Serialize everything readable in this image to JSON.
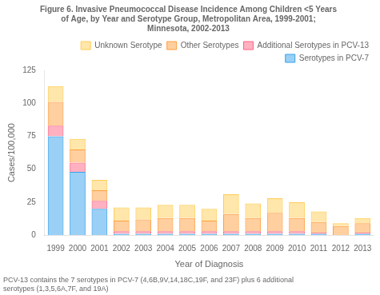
{
  "chart_data": {
    "type": "bar",
    "title": "Figure 6. Invasive Pneumococcal Disease Incidence Among Children <5 Years\nof Age, by Year and Serotype Group, Metropolitan Area, 1999-2001;\nMinnesota, 2002-2013",
    "xlabel": "Year of Diagnosis",
    "ylabel": "Cases/100,000",
    "footnote": "PCV-13 contains the 7 serotypes in PCV-7 (4,6B,9V,14,18C,19F, and 23F) plus 6 additional\nserotypes (1,3,5,6A,7F, and 19A)",
    "categories": [
      "1999",
      "2000",
      "2001",
      "2002",
      "2003",
      "2004",
      "2005",
      "2006",
      "2007",
      "2008",
      "2009",
      "2010",
      "2011",
      "2012",
      "2013"
    ],
    "series": [
      {
        "name": "Serotypes in PCV-7",
        "values": [
          75,
          48,
          20,
          1,
          1,
          1,
          1,
          1,
          1,
          1,
          1,
          1,
          1,
          0,
          1
        ]
      },
      {
        "name": "Additional Serotypes in PCV-13",
        "values": [
          8,
          7,
          6,
          2,
          2,
          2,
          2,
          2,
          2,
          2,
          2,
          2,
          1,
          0,
          1
        ]
      },
      {
        "name": "Other Serotypes",
        "values": [
          18,
          10,
          8,
          8,
          9,
          10,
          10,
          8,
          13,
          10,
          14,
          10,
          8,
          7,
          7
        ]
      },
      {
        "name": "Unknown Serotype",
        "values": [
          12,
          8,
          8,
          10,
          9,
          10,
          10,
          9,
          15,
          11,
          11,
          12,
          8,
          2,
          4
        ]
      }
    ],
    "stacked": true,
    "ylim": [
      0,
      125
    ],
    "yticks": [
      0,
      25,
      50,
      75,
      100,
      125
    ],
    "grid": false,
    "legend": "upper right"
  }
}
